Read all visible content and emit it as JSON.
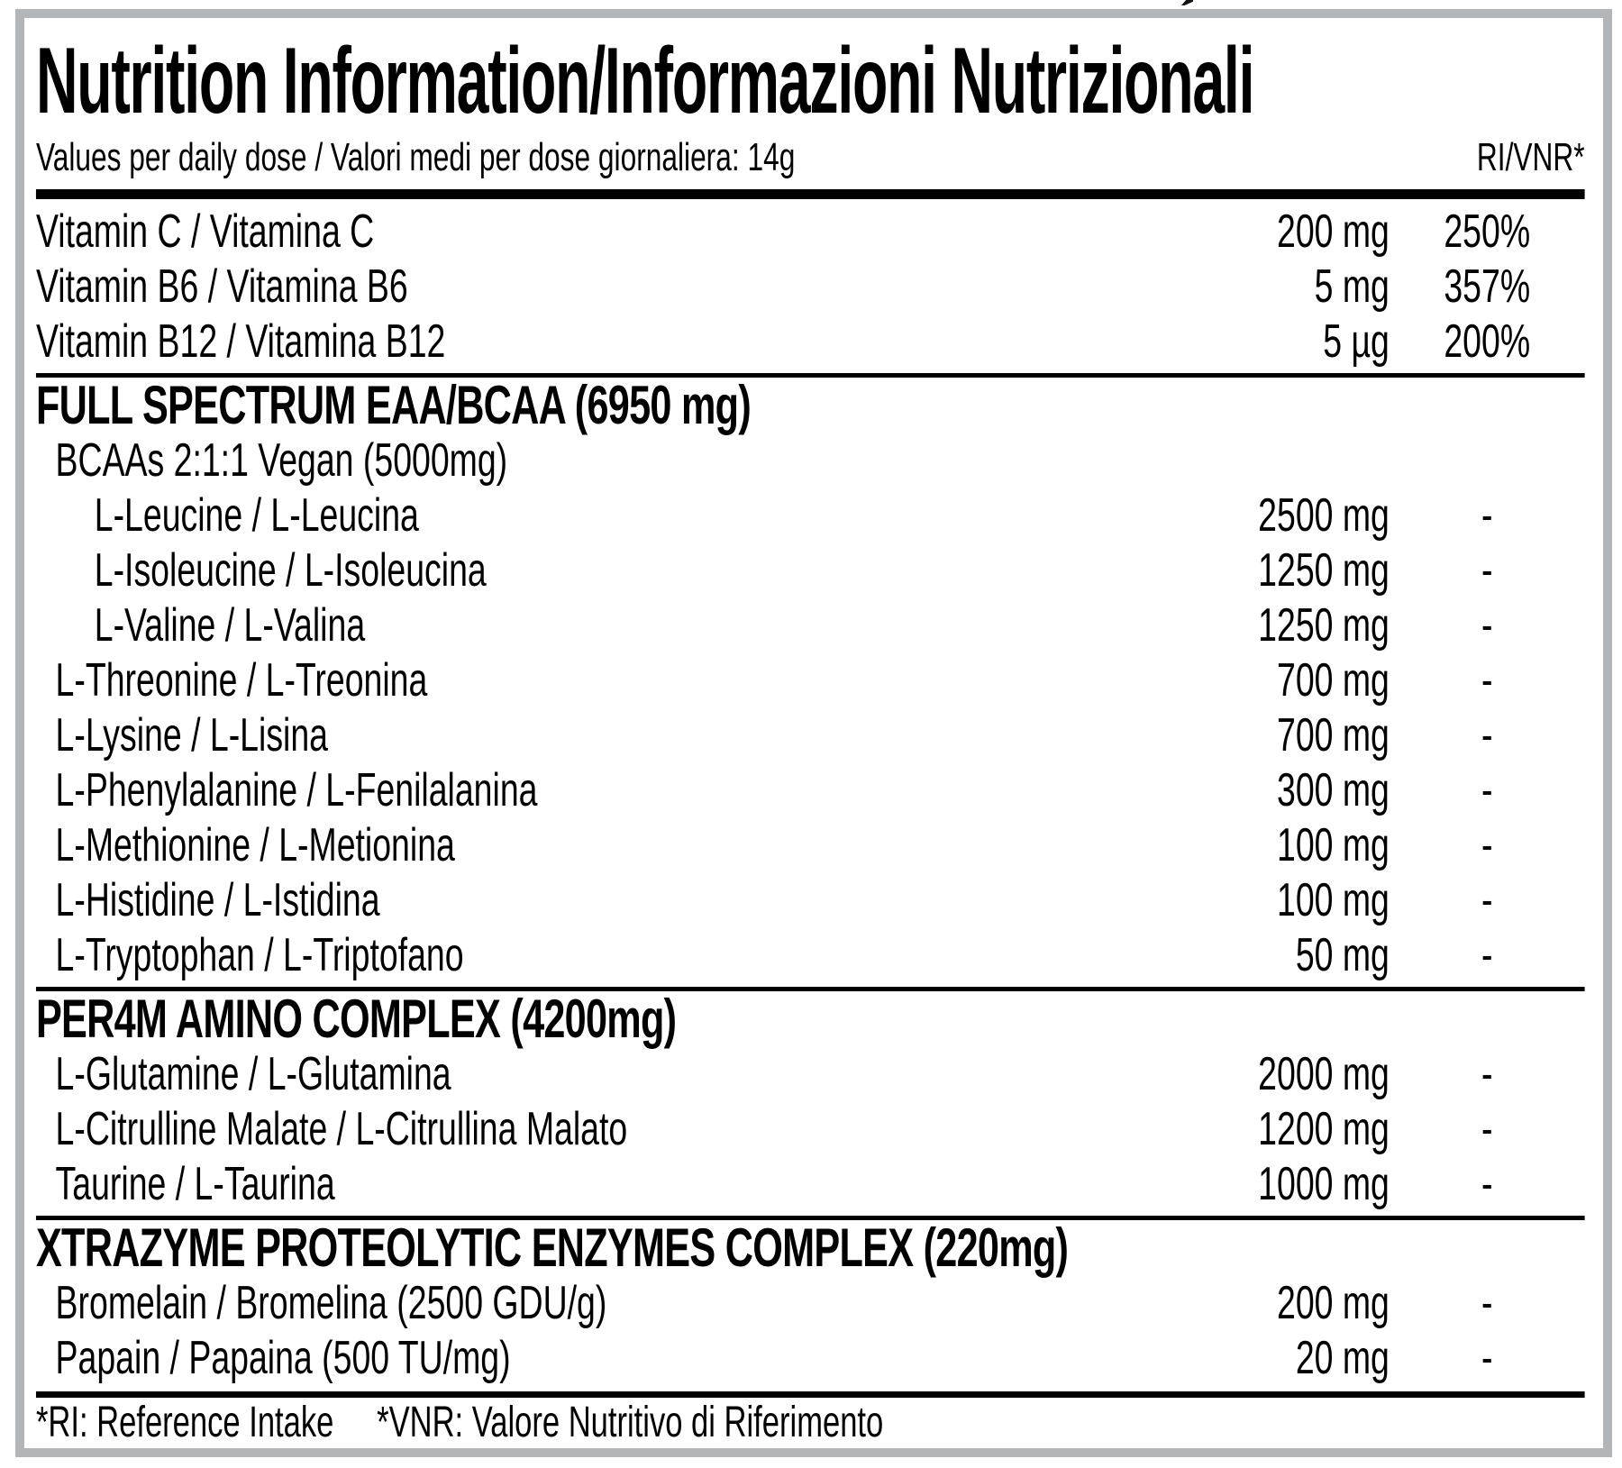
{
  "header": {
    "title": "Nutrition Information/Informazioni Nutrizionali",
    "subtitle": "Values per daily dose / Valori medi per dose giornaliera: 14g",
    "ri_column_header": "RI/VNR*"
  },
  "sections": [
    {
      "header": null,
      "rows": [
        {
          "label": "Vitamin C / Vitamina C",
          "amount": "200 mg",
          "ri": "250%",
          "indent": 0
        },
        {
          "label": "Vitamin B6 / Vitamina B6",
          "amount": "5 mg",
          "ri": "357%",
          "indent": 0
        },
        {
          "label": "Vitamin B12 / Vitamina B12",
          "amount": "5 µg",
          "ri": "200%",
          "indent": 0
        }
      ]
    },
    {
      "header": "FULL SPECTRUM EAA/BCAA (6950 mg)",
      "rows": [
        {
          "label": "BCAAs 2:1:1 Vegan (5000mg)",
          "amount": "",
          "ri": "",
          "indent": 1
        },
        {
          "label": "L-Leucine / L-Leucina",
          "amount": "2500 mg",
          "ri": "-",
          "indent": 2
        },
        {
          "label": "L-Isoleucine / L-Isoleucina",
          "amount": "1250 mg",
          "ri": "-",
          "indent": 2
        },
        {
          "label": "L-Valine / L-Valina",
          "amount": "1250 mg",
          "ri": "-",
          "indent": 2
        },
        {
          "label": "L-Threonine / L-Treonina",
          "amount": "700 mg",
          "ri": "-",
          "indent": 1
        },
        {
          "label": "L-Lysine / L-Lisina",
          "amount": "700 mg",
          "ri": "-",
          "indent": 1
        },
        {
          "label": "L-Phenylalanine / L-Fenilalanina",
          "amount": "300 mg",
          "ri": "-",
          "indent": 1
        },
        {
          "label": "L-Methionine / L-Metionina",
          "amount": "100 mg",
          "ri": "-",
          "indent": 1
        },
        {
          "label": "L-Histidine / L-Istidina",
          "amount": "100 mg",
          "ri": "-",
          "indent": 1
        },
        {
          "label": "L-Tryptophan / L-Triptofano",
          "amount": "50 mg",
          "ri": "-",
          "indent": 1
        }
      ]
    },
    {
      "header": "PER4M AMINO COMPLEX (4200mg)",
      "rows": [
        {
          "label": "L-Glutamine / L-Glutamina",
          "amount": "2000 mg",
          "ri": "-",
          "indent": 1
        },
        {
          "label": "L-Citrulline Malate / L-Citrullina Malato",
          "amount": "1200 mg",
          "ri": "-",
          "indent": 1
        },
        {
          "label": "Taurine / L-Taurina",
          "amount": "1000 mg",
          "ri": "-",
          "indent": 1
        }
      ]
    },
    {
      "header": "XTRAZYME PROTEOLYTIC ENZYMES COMPLEX (220mg)",
      "rows": [
        {
          "label": "Bromelain / Bromelina (2500 GDU/g)",
          "amount": "200 mg",
          "ri": "-",
          "indent": 1
        },
        {
          "label": "Papain / Papaina (500 TU/mg)",
          "amount": "20 mg",
          "ri": "-",
          "indent": 1
        }
      ]
    }
  ],
  "footer": {
    "ri_note": "*RI: Reference Intake",
    "vnr_note": "*VNR: Valore Nutritivo di Riferimento"
  },
  "colors": {
    "frame_border": "#b2b6b9",
    "divider": "#000000",
    "text": "#000000",
    "background": "#ffffff"
  }
}
